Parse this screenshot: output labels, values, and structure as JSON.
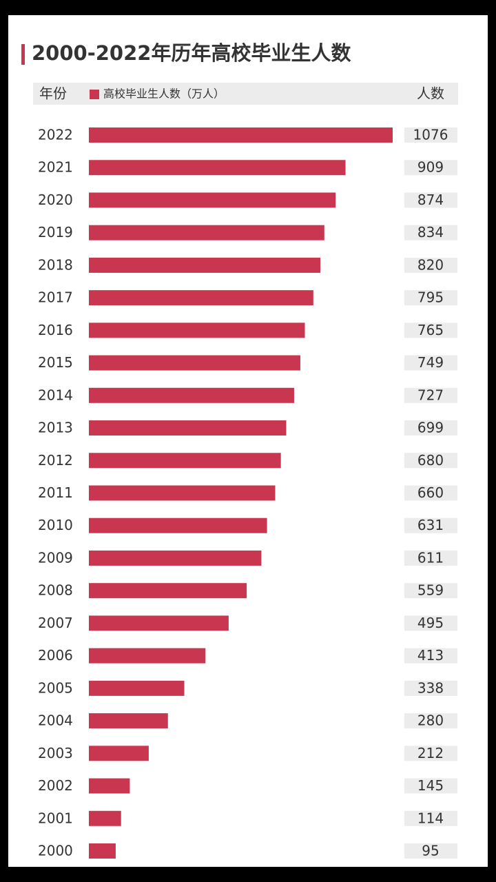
{
  "chart_data": {
    "type": "bar",
    "orientation": "horizontal",
    "title": "2000-2022年历年高校毕业生人数",
    "category_header": "年份",
    "value_header": "人数",
    "categories": [
      "2022",
      "2021",
      "2020",
      "2019",
      "2018",
      "2017",
      "2016",
      "2015",
      "2014",
      "2013",
      "2012",
      "2011",
      "2010",
      "2009",
      "2008",
      "2007",
      "2006",
      "2005",
      "2004",
      "2003",
      "2002",
      "2001",
      "2000"
    ],
    "series": [
      {
        "name": "高校毕业生人数（万人）",
        "color": "#c8374f",
        "values": [
          1076,
          909,
          874,
          834,
          820,
          795,
          765,
          749,
          727,
          699,
          680,
          660,
          631,
          611,
          559,
          495,
          413,
          338,
          280,
          212,
          145,
          114,
          95
        ]
      }
    ]
  }
}
